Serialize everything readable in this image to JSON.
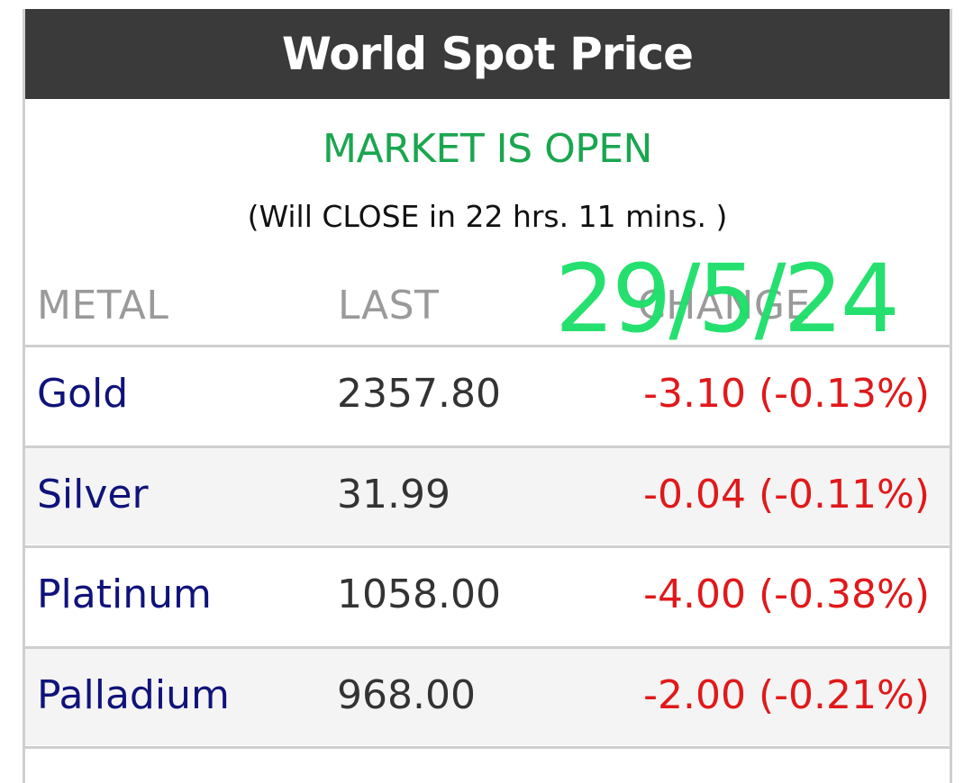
{
  "header": {
    "title": "World Spot Price"
  },
  "market": {
    "status": "MARKET IS OPEN",
    "close_note": "(Will CLOSE in 22 hrs. 11 mins. )"
  },
  "columns": {
    "metal": "METAL",
    "last": "LAST",
    "change": "CHANGE"
  },
  "overlay": {
    "date": "29/5/24"
  },
  "rows": [
    {
      "metal": "Gold",
      "last": "2357.80",
      "change": "-3.10 (-0.13%)"
    },
    {
      "metal": "Silver",
      "last": "31.99",
      "change": "-0.04 (-0.11%)"
    },
    {
      "metal": "Platinum",
      "last": "1058.00",
      "change": "-4.00 (-0.38%)"
    },
    {
      "metal": "Palladium",
      "last": "968.00",
      "change": "-2.00 (-0.21%)"
    }
  ],
  "colors": {
    "title_bg": "#3a3a3a",
    "status_green": "#1aa64f",
    "metal_name": "#10137a",
    "negative_change": "#e0191b",
    "date_overlay": "#1ee06a"
  }
}
